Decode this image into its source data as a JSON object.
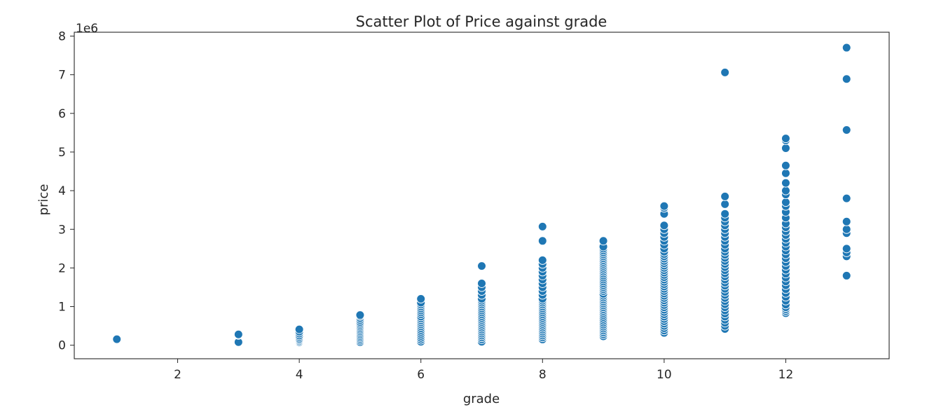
{
  "chart_data": {
    "type": "scatter",
    "title": "Scatter Plot of Price against  grade",
    "xlabel": "grade",
    "ylabel": "price",
    "y_offset_text": "1e6",
    "x_range": [
      0.3,
      13.7
    ],
    "y_range": [
      -350000,
      8100000
    ],
    "x_ticks": [
      2,
      4,
      6,
      8,
      10,
      12
    ],
    "y_ticks": [
      0,
      1000000,
      2000000,
      3000000,
      4000000,
      5000000,
      6000000,
      7000000,
      8000000
    ],
    "y_tick_labels": [
      "0",
      "1",
      "2",
      "3",
      "4",
      "5",
      "6",
      "7",
      "8"
    ],
    "grid": false,
    "legend": "none",
    "point_color": "#1f77b4",
    "points": [
      {
        "x": 1,
        "y": [
          142000,
          155000
        ]
      },
      {
        "x": 3,
        "y": [
          80000,
          262000,
          280000
        ]
      },
      {
        "x": 4,
        "y": [
          80000,
          110000,
          140000,
          170000,
          210000,
          250000,
          300000,
          350000,
          410000
        ]
      },
      {
        "x": 5,
        "y": [
          80000,
          120000,
          160000,
          200000,
          240000,
          280000,
          320000,
          360000,
          400000,
          440000,
          480000,
          520000,
          560000,
          600000,
          650000,
          700000,
          750000,
          780000
        ]
      },
      {
        "x": 6,
        "y": [
          90000,
          140000,
          190000,
          240000,
          290000,
          340000,
          390000,
          440000,
          490000,
          540000,
          590000,
          640000,
          690000,
          740000,
          800000,
          850000,
          900000,
          950000,
          1000000,
          1050000,
          1100000,
          1200000
        ]
      },
      {
        "x": 7,
        "y": [
          90000,
          150000,
          200000,
          250000,
          300000,
          350000,
          400000,
          450000,
          500000,
          550000,
          600000,
          650000,
          700000,
          750000,
          800000,
          850000,
          900000,
          950000,
          1000000,
          1050000,
          1100000,
          1150000,
          1200000,
          1300000,
          1400000,
          1500000,
          1600000,
          2050000
        ]
      },
      {
        "x": 8,
        "y": [
          150000,
          200000,
          250000,
          300000,
          350000,
          400000,
          450000,
          500000,
          550000,
          600000,
          650000,
          700000,
          750000,
          800000,
          850000,
          900000,
          950000,
          1000000,
          1050000,
          1100000,
          1150000,
          1200000,
          1300000,
          1400000,
          1500000,
          1600000,
          1700000,
          1800000,
          1900000,
          2000000,
          2100000,
          2200000,
          2700000,
          3070000
        ]
      },
      {
        "x": 9,
        "y": [
          230000,
          280000,
          330000,
          380000,
          430000,
          480000,
          530000,
          580000,
          630000,
          680000,
          730000,
          780000,
          830000,
          880000,
          930000,
          980000,
          1030000,
          1080000,
          1130000,
          1180000,
          1230000,
          1280000,
          1330000,
          1400000,
          1450000,
          1500000,
          1550000,
          1600000,
          1650000,
          1700000,
          1750000,
          1800000,
          1850000,
          1900000,
          1950000,
          2000000,
          2050000,
          2100000,
          2150000,
          2200000,
          2250000,
          2300000,
          2350000,
          2400000,
          2450000,
          2500000,
          2550000,
          2700000
        ]
      },
      {
        "x": 10,
        "y": [
          320000,
          380000,
          440000,
          500000,
          560000,
          620000,
          680000,
          740000,
          800000,
          860000,
          920000,
          980000,
          1040000,
          1100000,
          1160000,
          1220000,
          1280000,
          1340000,
          1400000,
          1460000,
          1520000,
          1580000,
          1640000,
          1700000,
          1760000,
          1820000,
          1880000,
          1940000,
          2000000,
          2060000,
          2120000,
          2180000,
          2240000,
          2300000,
          2360000,
          2420000,
          2500000,
          2600000,
          2700000,
          2800000,
          2900000,
          3000000,
          3100000,
          3400000,
          3550000,
          3600000
        ]
      },
      {
        "x": 11,
        "y": [
          420000,
          500000,
          580000,
          660000,
          740000,
          820000,
          900000,
          980000,
          1060000,
          1140000,
          1220000,
          1300000,
          1380000,
          1460000,
          1540000,
          1620000,
          1700000,
          1780000,
          1860000,
          1940000,
          2020000,
          2100000,
          2180000,
          2260000,
          2340000,
          2420000,
          2500000,
          2600000,
          2700000,
          2800000,
          2900000,
          3000000,
          3100000,
          3200000,
          3300000,
          3400000,
          3650000,
          3850000,
          7060000
        ]
      },
      {
        "x": 12,
        "y": [
          830000,
          880000,
          930000,
          980000,
          1050000,
          1150000,
          1250000,
          1350000,
          1450000,
          1550000,
          1650000,
          1750000,
          1850000,
          1950000,
          2050000,
          2150000,
          2250000,
          2350000,
          2450000,
          2550000,
          2650000,
          2750000,
          2850000,
          2950000,
          3050000,
          3150000,
          3300000,
          3450000,
          3600000,
          3700000,
          3900000,
          4000000,
          4200000,
          4450000,
          4650000,
          5100000,
          5300000,
          5350000
        ]
      },
      {
        "x": 13,
        "y": [
          1800000,
          2300000,
          2400000,
          2500000,
          2900000,
          3000000,
          3200000,
          3800000,
          5570000,
          6890000,
          7700000
        ]
      }
    ]
  }
}
